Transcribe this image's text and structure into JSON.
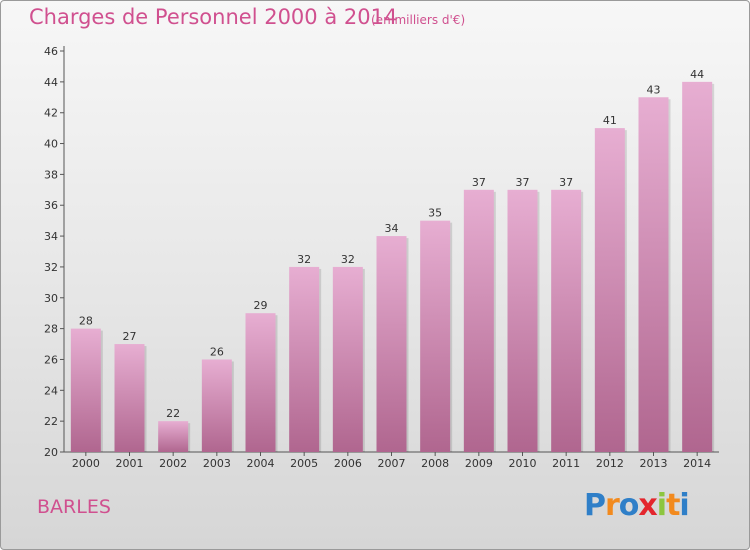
{
  "header": {
    "title": "Charges de Personnel 2000 à 2014",
    "subtitle": "(en milliers d'€)"
  },
  "commune": "BARLES",
  "brand": {
    "letters": [
      "P",
      "r",
      "o",
      "x",
      "i",
      "t",
      "i"
    ],
    "colors": [
      "#2f7fc8",
      "#f28a1e",
      "#2f7fc8",
      "#e3262d",
      "#8dc63f",
      "#f28a1e",
      "#2f7fc8"
    ]
  },
  "colors": {
    "bar_top": "#e7aed2",
    "bar_bottom": "#b0668f",
    "axis": "#555555"
  },
  "chart_data": {
    "type": "bar",
    "categories": [
      "2000",
      "2001",
      "2002",
      "2003",
      "2004",
      "2005",
      "2006",
      "2007",
      "2008",
      "2009",
      "2010",
      "2011",
      "2012",
      "2013",
      "2014"
    ],
    "values": [
      28,
      27,
      22,
      26,
      29,
      32,
      32,
      34,
      35,
      37,
      37,
      37,
      41,
      43,
      44
    ],
    "ylim": [
      20,
      46
    ],
    "yticks": [
      20,
      22,
      24,
      26,
      28,
      30,
      32,
      34,
      36,
      38,
      40,
      42,
      44,
      46
    ],
    "grid": false,
    "legend": "none"
  }
}
